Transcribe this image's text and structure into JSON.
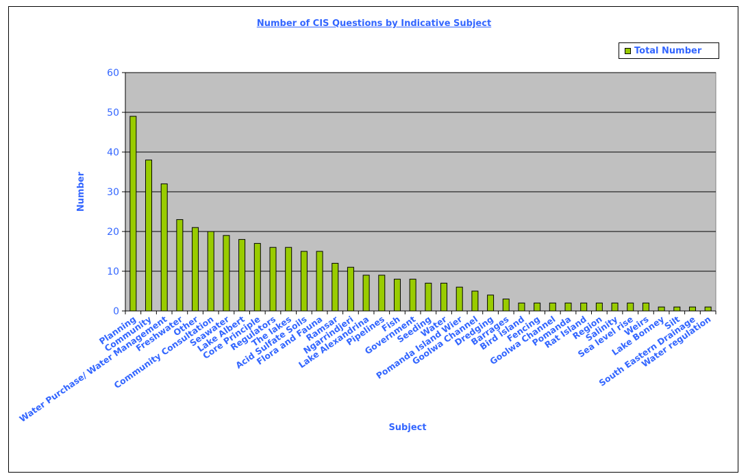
{
  "chart_data": {
    "type": "bar",
    "title": "Number of CIS Questions by Indicative Subject",
    "xlabel": "Subject",
    "ylabel": "Number",
    "ylim": [
      0,
      60
    ],
    "yticks": [
      "0",
      "10",
      "20",
      "30",
      "40",
      "50",
      "60"
    ],
    "grid": true,
    "legend_position": "top-right",
    "categories": [
      "Planning",
      "Community",
      "Water Purchase/ Water Management",
      "Freshwater",
      "Other",
      "Community Consultation",
      "Seawater",
      "Lake Albert",
      "Core Principle",
      "Regulators",
      "The lakes",
      "Acid Sulfate Soils",
      "Flora and Fauna",
      "Ramsar",
      "Ngarrindjeri",
      "Lake Alexandrina",
      "Pipelines",
      "Fish",
      "Government",
      "Seeding",
      "Water",
      "Pomanda Island Wier",
      "Goolwa Channel",
      "Dredging",
      "Barrages",
      "Bird island",
      "Fencing",
      "Goolwa Channel",
      "Pomanda",
      "Rat Island",
      "Region",
      "Salinity",
      "Sea level rise",
      "Weirs",
      "Lake Bonney",
      "Silt",
      "South Eastern Drainage",
      "Water regulation"
    ],
    "series": [
      {
        "name": "Total Number",
        "color": "#99cc00",
        "values": [
          49,
          38,
          32,
          23,
          21,
          20,
          19,
          18,
          17,
          16,
          16,
          15,
          15,
          12,
          11,
          9,
          9,
          8,
          8,
          7,
          7,
          6,
          5,
          4,
          3,
          2,
          2,
          2,
          2,
          2,
          2,
          2,
          2,
          2,
          1,
          1,
          1,
          1
        ]
      }
    ],
    "colors": {
      "plot_background": "#c0c0c0",
      "bar": "#99cc00",
      "text": "#3366ff"
    }
  }
}
